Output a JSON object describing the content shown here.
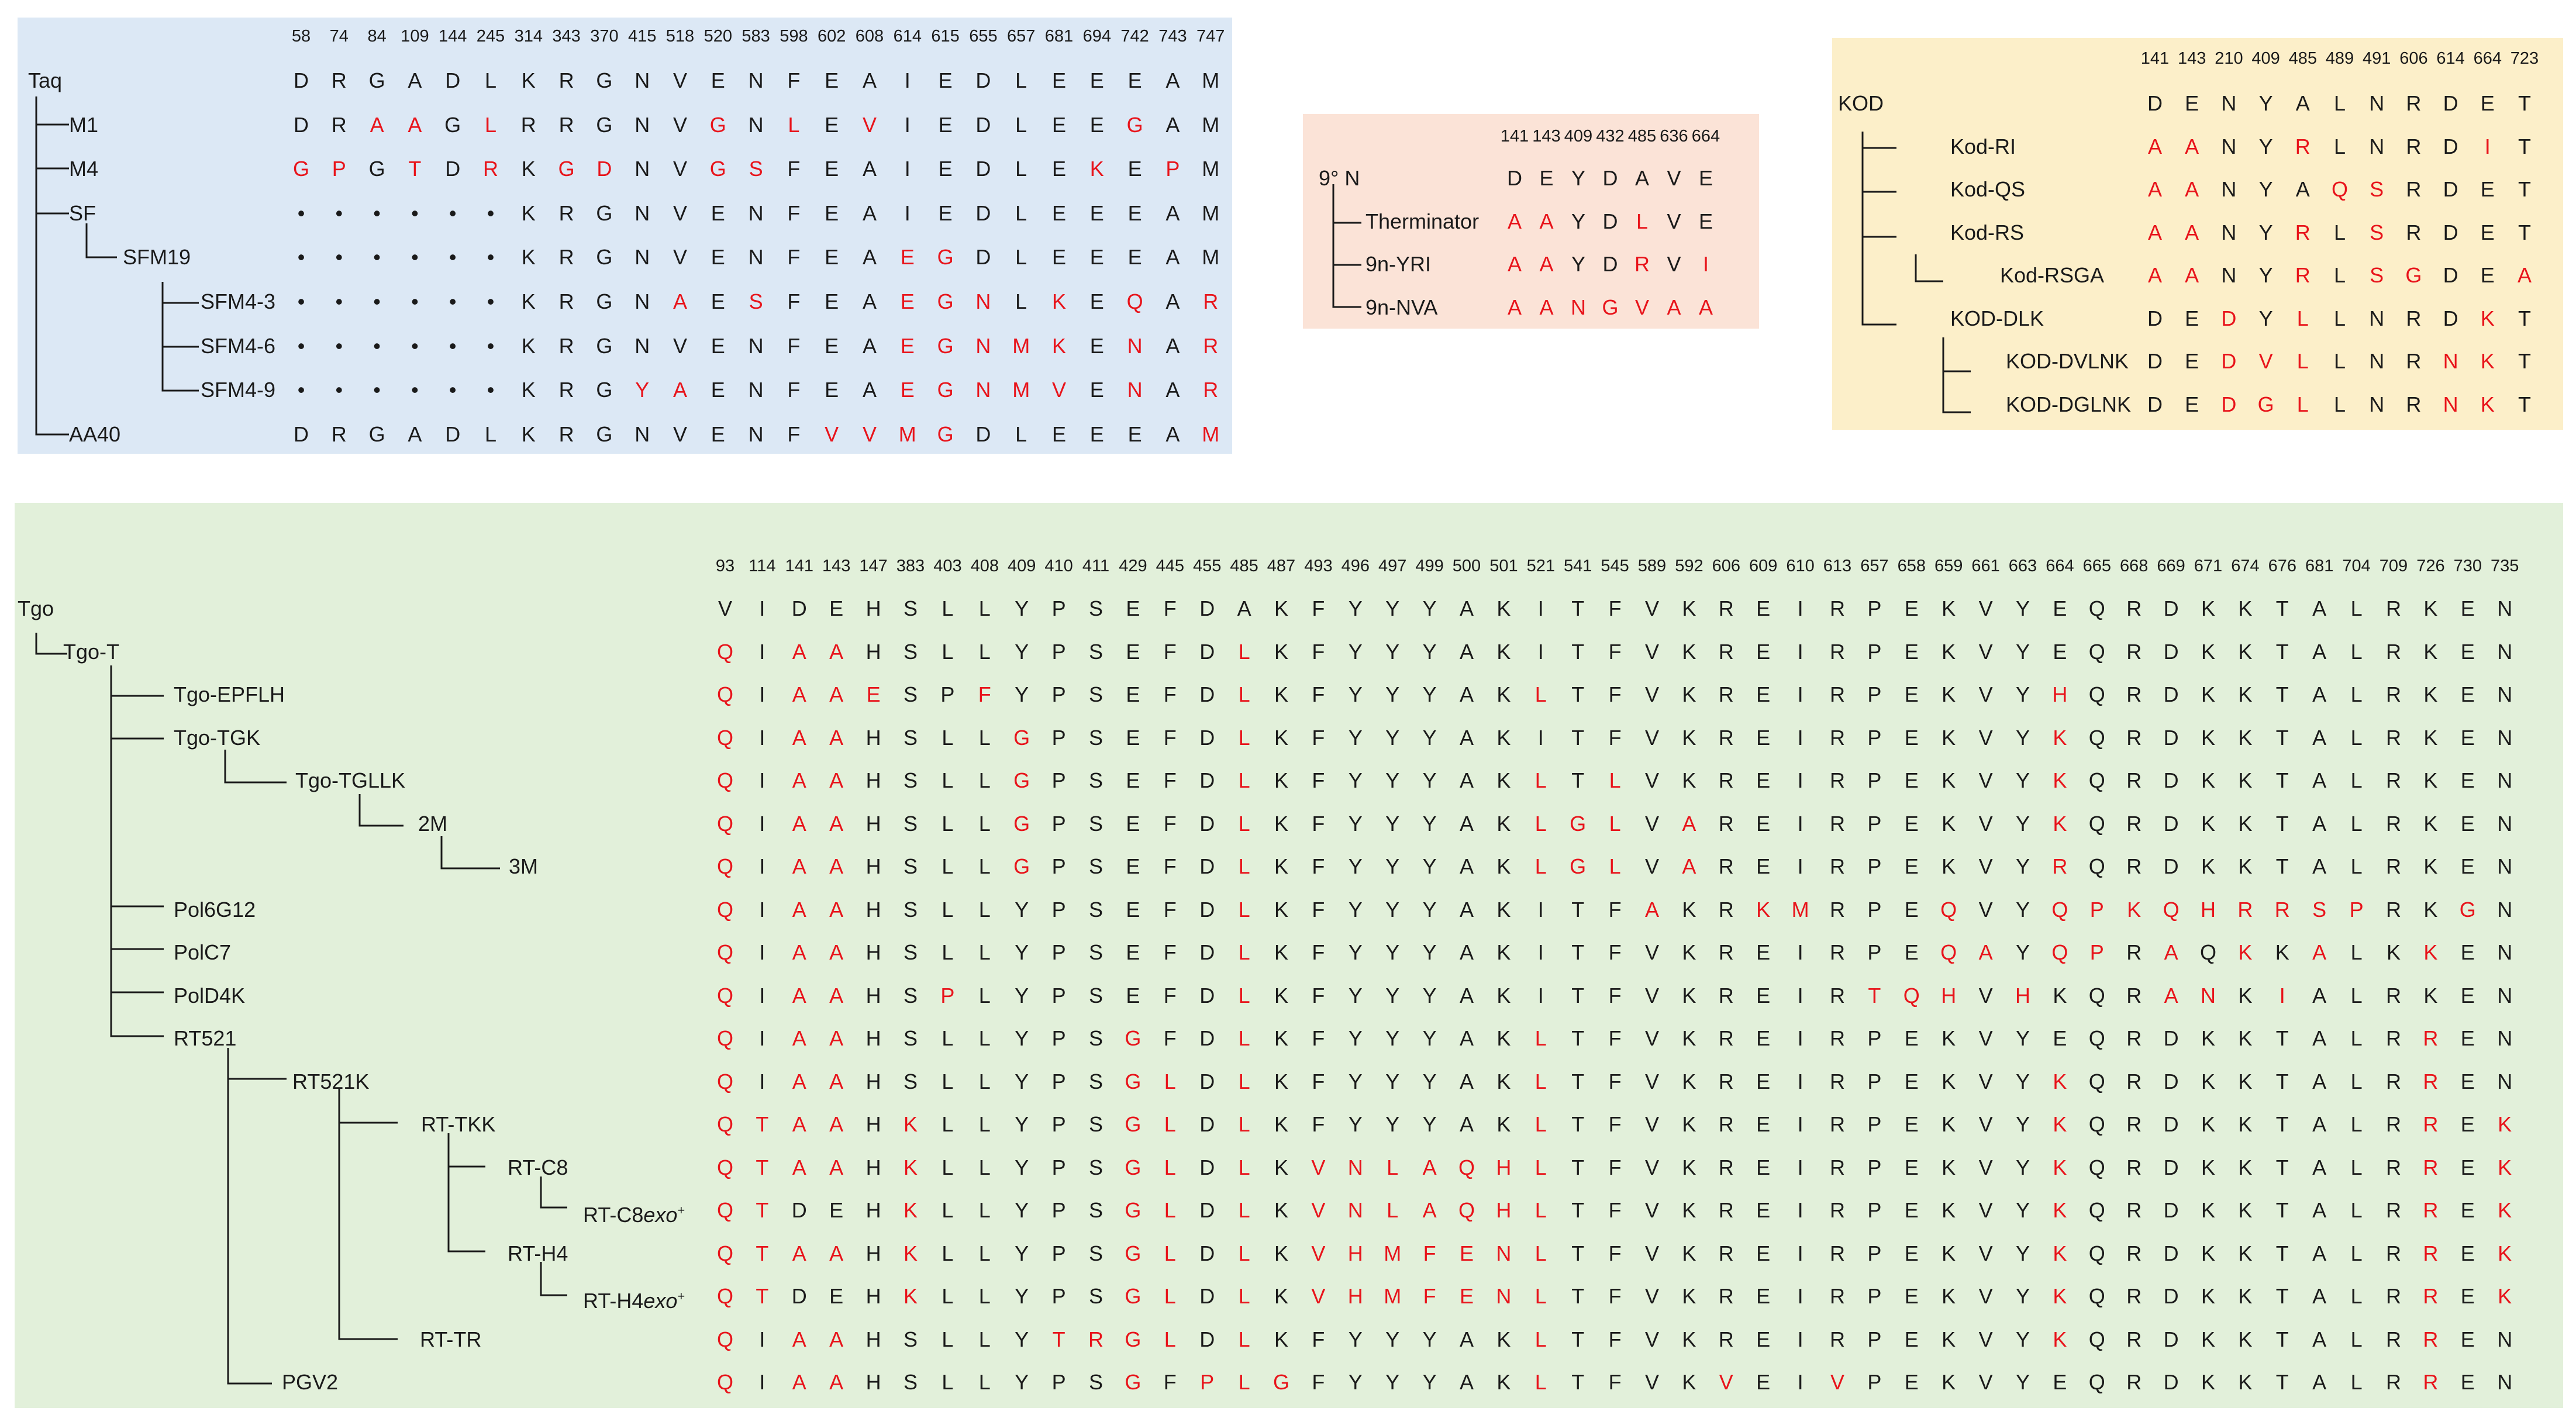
{
  "colors": {
    "taq_bg": "#dce8f5",
    "ninen_bg": "#fbe3d7",
    "kod_bg": "#fcefc9",
    "tgo_bg": "#e2f0da",
    "mutation": "#e8141b",
    "text": "#1a1a1a"
  },
  "panels": [
    {
      "id": "taq",
      "positions": [
        "58",
        "74",
        "84",
        "109",
        "144",
        "245",
        "314",
        "343",
        "370",
        "415",
        "518",
        "520",
        "583",
        "598",
        "602",
        "608",
        "614",
        "615",
        "655",
        "657",
        "681",
        "694",
        "742",
        "743",
        "747"
      ],
      "rows": [
        {
          "name": "Taq",
          "seq": "DRGADLKRGNVENFEAIEDLEEEAM",
          "mut": ""
        },
        {
          "name": "M1",
          "seq": "DRAAGLRRGNVGNLEVIEDLEEGAM",
          "mut": "0011010000010101000000100"
        },
        {
          "name": "M4",
          "seq": "GPGTDRKGDNVGSFEAIEDLEKEPM",
          "mut": "1101010110011000000001010"
        },
        {
          "name": "SF",
          "seq": "••••••KRGNVENFEAIEDLEEEAM",
          "mut": ""
        },
        {
          "name": "SFM19",
          "seq": "••••••KRGNVENFEAEGDLEEEAM",
          "mut": "0000000000000000110000000"
        },
        {
          "name": "SFM4-3",
          "seq": "••••••KRGNAESFEAEGNLKEQAR",
          "mut": "0000000000101000111010101"
        },
        {
          "name": "SFM4-6",
          "seq": "••••••KRGNVENFEAEGNMKENAR",
          "mut": "0000000000000000111110101"
        },
        {
          "name": "SFM4-9",
          "seq": "••••••KRGYAENFEAEGNMVENAR",
          "mut": "0000000001100000111110101"
        },
        {
          "name": "AA40",
          "seq": "DRGADLKRGNVENFVVMGDLEEEAM",
          "mut": "0000000000000011110000001"
        }
      ]
    },
    {
      "id": "ninen",
      "positions": [
        "141",
        "143",
        "409",
        "432",
        "485",
        "636",
        "664"
      ],
      "rows": [
        {
          "name": "9° N",
          "seq": "DEYDAVE",
          "mut": ""
        },
        {
          "name": "Therminator",
          "seq": "AAYDLVE",
          "mut": "1100100"
        },
        {
          "name": "9n-YRI",
          "seq": "AAYDRVI",
          "mut": "1100101"
        },
        {
          "name": "9n-NVA",
          "seq": "AANGVAA",
          "mut": "1111111"
        }
      ]
    },
    {
      "id": "kod",
      "positions": [
        "141",
        "143",
        "210",
        "409",
        "485",
        "489",
        "491",
        "606",
        "614",
        "664",
        "723"
      ],
      "rows": [
        {
          "name": "KOD",
          "seq": "DENYALNRDET",
          "mut": ""
        },
        {
          "name": "Kod-RI",
          "seq": "AANYRLNRDIT",
          "mut": "11001000010"
        },
        {
          "name": "Kod-QS",
          "seq": "AANYAQSRDET",
          "mut": "11000110000"
        },
        {
          "name": "Kod-RS",
          "seq": "AANYRLSRDET",
          "mut": "11001010000"
        },
        {
          "name": "Kod-RSGA",
          "seq": "AANYRLSGDEA",
          "mut": "11001011001"
        },
        {
          "name": "KOD-DLK",
          "seq": "DEDYLLNRDKT",
          "mut": "00101000010"
        },
        {
          "name": "KOD-DVLNK",
          "seq": "DEDVLLNRNKT",
          "mut": "00111000110"
        },
        {
          "name": "KOD-DGLNK",
          "seq": "DEDGLLNRNKT",
          "mut": "00111000110"
        }
      ]
    },
    {
      "id": "tgo",
      "positions": [
        "93",
        "114",
        "141",
        "143",
        "147",
        "383",
        "403",
        "408",
        "409",
        "410",
        "411",
        "429",
        "445",
        "455",
        "485",
        "487",
        "493",
        "496",
        "497",
        "499",
        "500",
        "501",
        "521",
        "541",
        "545",
        "589",
        "592",
        "606",
        "609",
        "610",
        "613",
        "657",
        "658",
        "659",
        "661",
        "663",
        "664",
        "665",
        "668",
        "669",
        "671",
        "674",
        "676",
        "681",
        "704",
        "709",
        "726",
        "730",
        "735"
      ],
      "rows": [
        {
          "name": "Tgo",
          "seq": "VIDEHSLLYPSEFDAKFYYYAKITFVKREIRPEKVYEQRDKKTALRKEN",
          "mut": ""
        },
        {
          "name": "Tgo-T",
          "seq": "QIAAHSLLYPSEFDLKFYYYAKITFVKREIRPEKVYEQRDKKTALRKEN",
          "mut": "1011000000000010000000000000000000000000000000000"
        },
        {
          "name": "Tgo-EPFLH",
          "seq": "QIAAESPFYPSEFDLKFYYYAKLTFVKREIRPEKVYHQRDKKTALRKEN",
          "mut": "1011100100000010000000100000000000001000000000000"
        },
        {
          "name": "Tgo-TGK",
          "seq": "QIAAHSLLGPSEFDLKFYYYAKITFVKREIRPEKVYKQRDKKTALRKEN",
          "mut": "1011000010000010000000000000000000001000000000000"
        },
        {
          "name": "Tgo-TGLLK",
          "seq": "QIAAHSLLGPSEFDLKFYYYAKLTLVKREIRPEKVYKQRDKKTALRKEN",
          "mut": "1011000010000010000000101000000000001000000000000"
        },
        {
          "name": "2M",
          "seq": "QIAAHSLLGPSEFDLKFYYYAKLGLVAREIRPEKVYKQRDKKTALRKEN",
          "mut": "1011000010000010000000111010000000001000000000000"
        },
        {
          "name": "3M",
          "seq": "QIAAHSLLGPSEFDLKFYYYAKLGLVAREIRPEKVYRQRDKKTALRKEN",
          "mut": "1011000010000010000000111010000000001000000000000"
        },
        {
          "name": "Pol6G12",
          "seq": "QIAAHSLLYPSEFDLKFYYYAKITFAKRKMRPEQVYQPKQHRRSPRKGN",
          "mut": "1011000000000010000000000100110001001111111110010"
        },
        {
          "name": "PolC7",
          "seq": "QIAAHSLLYPSEFDLKFYYYAKITFVKREIRPEQAYQPRAQKKALKKEN",
          "mut": "1011000000000010000000000000000001101101010100100"
        },
        {
          "name": "PolD4K",
          "seq": "QIAAHSPLYPSEFDLKFYYYAKITFVKREIRTQHVHKQRANKIALRKEN",
          "mut": "1011001000000010000000000000000111010001101000000"
        },
        {
          "name": "RT521",
          "seq": "QIAAHSLLYPSGFDLKFYYYAKLTFVKREIRPEKVYEQRDKKTALRREN",
          "mut": "1011000000010010000000100000000000000000000000100"
        },
        {
          "name": "RT521K",
          "seq": "QIAAHSLLYPSGLDLKFYYYAKLTFVKREIRPEKVYKQRDKKTALRREN",
          "mut": "1011000000011010000000100000000000001000000000100"
        },
        {
          "name": "RT-TKK",
          "seq": "QTAAHKLLYPSGLDLKFYYYAKLTFVKREIRPEKVYKQRDKKTALRREK",
          "mut": "1111010000011010000000100000000000001000000000101"
        },
        {
          "name": "RT-C8",
          "seq": "QTAAHKLLYPSGLDLKVNLAQHLTFVKREIRPEKVYKQRDKKTALRREK",
          "mut": "1111010000011010111111100000000000001000000000101"
        },
        {
          "name": "RT-C8exo+",
          "seq": "QTDEHKLLYPSGLDLKVNLAQHLTFVKREIRPEKVYKQRDKKTALRREK",
          "mut": "1100010000011010111111100000000000001000000000101"
        },
        {
          "name": "RT-H4",
          "seq": "QTAAHKLLYPSGLDLKVHMFENLTFVKREIRPEKVYKQRDKKTALRREK",
          "mut": "1111010000011010111111100000000000001000000000101"
        },
        {
          "name": "RT-H4exo+",
          "seq": "QTDEHKLLYPSGLDLKVHMFENLTFVKREIRPEKVYKQRDKKTALRREK",
          "mut": "1100010000011010111111100000000000001000000000101"
        },
        {
          "name": "RT-TR",
          "seq": "QIAAHSLLYTRGLDLKFYYYAKLTFVKREIRPEKVYKQRDKKTALRREN",
          "mut": "1011000001111010000000100000000000001000000000100"
        },
        {
          "name": "PGV2",
          "seq": "QIAAHSLLYPSGFPLGFYYYAKLTFVKVEIVPEKVYEQRDKKTALRREN",
          "mut": "1011000000010111000000100001001000000000000000100"
        }
      ]
    }
  ]
}
